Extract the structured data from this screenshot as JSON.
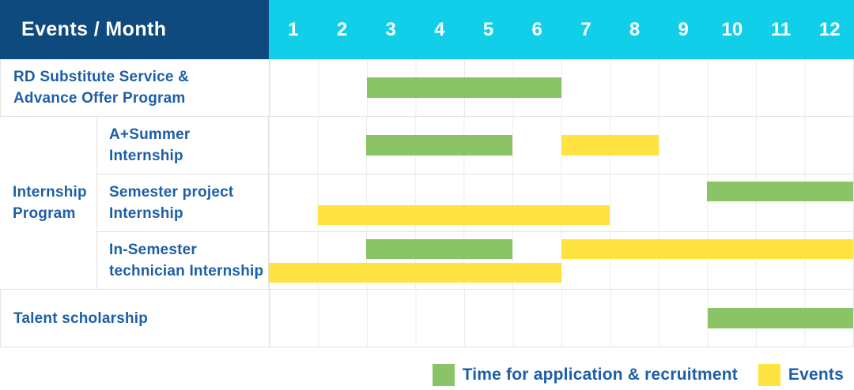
{
  "colors": {
    "header_bg": "#0E4A7E",
    "months_bg": "#12CFE9",
    "header_text": "#FFFFFF",
    "label_text": "#1D5FA7",
    "green": "#8AC466",
    "yellow": "#FFE340",
    "grid_line": "#ECECEC",
    "grid_strong": "#E3E3E3"
  },
  "table": {
    "header": {
      "title": "Events / Month",
      "months": [
        "1",
        "2",
        "3",
        "4",
        "5",
        "6",
        "7",
        "8",
        "9",
        "10",
        "11",
        "12"
      ]
    },
    "group_cell": {
      "lines": [
        "Internship",
        "Program"
      ]
    },
    "rows": [
      {
        "name": "rd-substitute-service-advance-offer-program",
        "lines": [
          "RD Substitute Service &",
          "Advance Offer Program"
        ],
        "sub": false,
        "bars": [
          {
            "color": "green",
            "start": 3,
            "end": 6,
            "track": "single"
          }
        ]
      },
      {
        "name": "a-plus-summer-internship",
        "lines": [
          "A+Summer",
          "Internship"
        ],
        "sub": true,
        "bars": [
          {
            "color": "green",
            "start": 3,
            "end": 5,
            "track": "single"
          },
          {
            "color": "yellow",
            "start": 7,
            "end": 8,
            "track": "single"
          }
        ]
      },
      {
        "name": "semester-project-internship",
        "lines": [
          "Semester project",
          "Internship"
        ],
        "sub": true,
        "bars": [
          {
            "color": "green",
            "start": 10,
            "end": 12,
            "track": "top"
          },
          {
            "color": "yellow",
            "start": 2,
            "end": 7,
            "track": "bottom"
          }
        ]
      },
      {
        "name": "in-semester-technician-internship",
        "lines": [
          "In-Semester",
          "technician Internship"
        ],
        "sub": true,
        "bars": [
          {
            "color": "green",
            "start": 3,
            "end": 5,
            "track": "top"
          },
          {
            "color": "yellow",
            "start": 7,
            "end": 12,
            "track": "top"
          },
          {
            "color": "yellow",
            "start": 1,
            "end": 6,
            "track": "bottom"
          }
        ]
      },
      {
        "name": "talent-scholarship",
        "lines": [
          "Talent scholarship"
        ],
        "sub": false,
        "bars": [
          {
            "color": "green",
            "start": 10,
            "end": 12,
            "track": "single"
          }
        ]
      }
    ]
  },
  "legend": {
    "items": [
      {
        "color": "green",
        "label": "Time for application & recruitment"
      },
      {
        "color": "yellow",
        "label": "Events"
      }
    ]
  },
  "chart_data": {
    "type": "bar",
    "subtype": "gantt-schedule",
    "title": "Events / Month",
    "x_axis": {
      "label": "Month",
      "ticks": [
        1,
        2,
        3,
        4,
        5,
        6,
        7,
        8,
        9,
        10,
        11,
        12
      ],
      "range": [
        1,
        12
      ]
    },
    "legend": [
      "Time for application & recruitment",
      "Events"
    ],
    "legend_position": "bottom-right",
    "rows": [
      {
        "event": "RD Substitute Service & Advance Offer Program",
        "group": null,
        "application_recruitment_months": [
          [
            3,
            6
          ]
        ],
        "events_months": []
      },
      {
        "event": "A+Summer Internship",
        "group": "Internship Program",
        "application_recruitment_months": [
          [
            3,
            5
          ]
        ],
        "events_months": [
          [
            7,
            8
          ]
        ]
      },
      {
        "event": "Semester project Internship",
        "group": "Internship Program",
        "application_recruitment_months": [
          [
            10,
            12
          ]
        ],
        "events_months": [
          [
            2,
            7
          ]
        ]
      },
      {
        "event": "In-Semester technician Internship",
        "group": "Internship Program",
        "application_recruitment_months": [
          [
            3,
            5
          ]
        ],
        "events_months": [
          [
            1,
            6
          ],
          [
            7,
            12
          ]
        ]
      },
      {
        "event": "Talent scholarship",
        "group": null,
        "application_recruitment_months": [
          [
            10,
            12
          ]
        ],
        "events_months": []
      }
    ]
  }
}
